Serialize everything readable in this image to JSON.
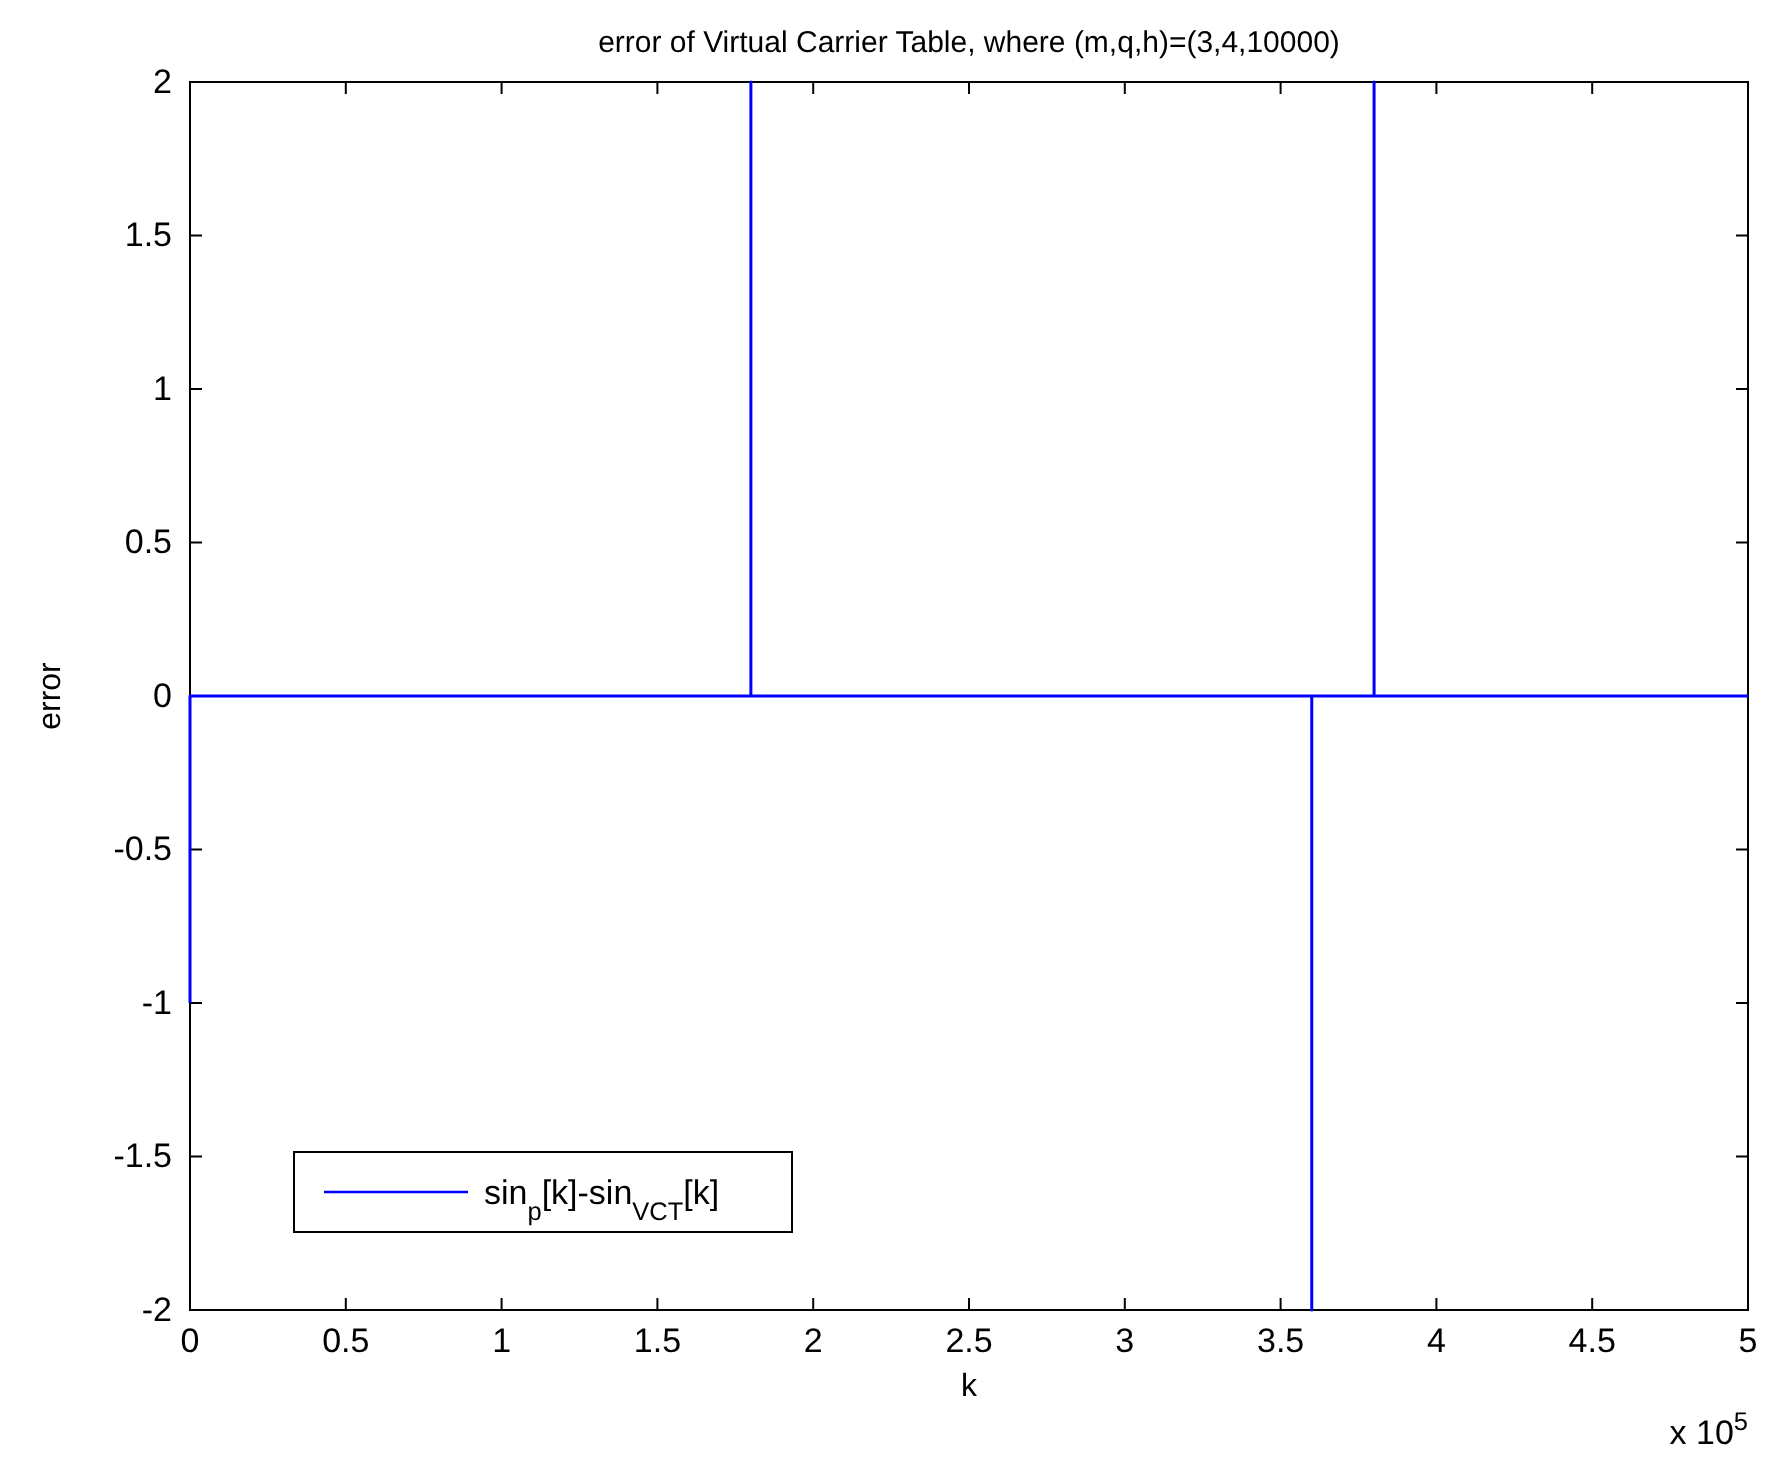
{
  "chart_data": {
    "type": "line",
    "title": "error of Virtual Carrier Table, where (m,q,h)=(3,4,10000)",
    "xlabel": "k",
    "ylabel": "error",
    "x": [
      0,
      0,
      1.8,
      1.8,
      1.8,
      3.6,
      3.6,
      3.6,
      3.8,
      3.8,
      3.8,
      5
    ],
    "series": [
      {
        "name": "sin$_{p}$[k]-sin$_{VCT}$[k]",
        "color": "#0000ff",
        "values": [
          -1,
          0,
          0,
          2,
          0,
          0,
          -2,
          0,
          0,
          2,
          0,
          0
        ]
      }
    ],
    "xlim": [
      0,
      5
    ],
    "xticks": [
      0,
      0.5,
      1,
      1.5,
      2,
      2.5,
      3,
      3.5,
      4,
      4.5,
      5
    ],
    "ylim": [
      -2,
      2
    ],
    "yticks": [
      -2,
      -1.5,
      -1,
      -0.5,
      0,
      0.5,
      1,
      1.5,
      2
    ],
    "annotations": [
      "x 10$^{5}$"
    ],
    "legend": "bottom left",
    "grid": false,
    "marker": "none",
    "line_style": "solid"
  }
}
